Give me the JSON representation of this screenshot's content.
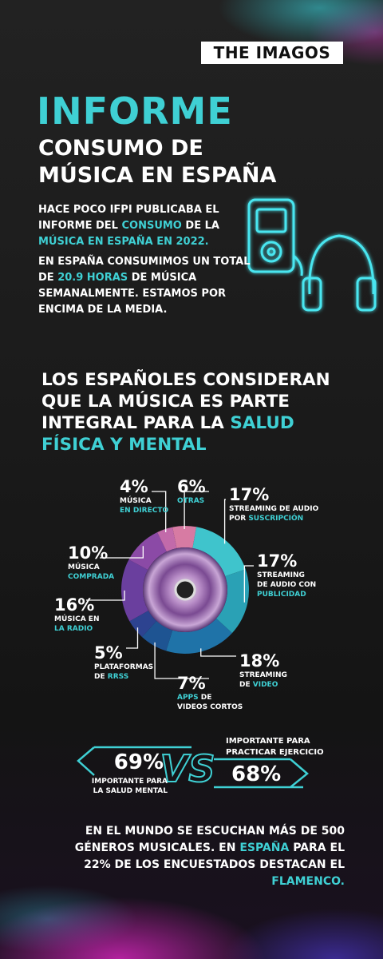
{
  "logo": "THE IMAGOS",
  "header": {
    "title": "INFORME",
    "subtitle_lines": [
      "CONSUMO DE",
      "MÚSICA EN ESPAÑA"
    ]
  },
  "intro": [
    [
      {
        "text": "HACE POCO IFPI PUBLICABA EL INFORME DEL "
      },
      {
        "text": "CONSUMO",
        "accent": true
      },
      {
        "text": " DE LA "
      },
      {
        "text": "MÚSICA EN ESPAÑA EN 2022.",
        "accent": true
      }
    ],
    [
      {
        "text": "EN ESPAÑA CONSUMIMOS UN TOTAL DE "
      },
      {
        "text": "20.9 HORAS",
        "accent": true
      },
      {
        "text": " DE MÚSICA SEMANALMENTE. ESTAMOS POR ENCIMA DE LA MEDIA."
      }
    ]
  ],
  "heading": [
    {
      "text": "LOS ESPAÑOLES CONSIDERAN QUE LA MÚSICA ES PARTE INTEGRAL PARA LA "
    },
    {
      "text": "SALUD FÍSICA Y MENTAL",
      "accent": true
    }
  ],
  "chart_data": {
    "type": "pie",
    "values": [
      6,
      17,
      17,
      18,
      7,
      5,
      16,
      10,
      4
    ],
    "value_labels": [
      "6%",
      "17%",
      "17%",
      "18%",
      "7%",
      "5%",
      "16%",
      "10%",
      "4%"
    ],
    "categories": [
      [
        [
          {
            "text": "OTRAS",
            "accent": true
          }
        ]
      ],
      [
        [
          {
            "text": "STREAMING DE AUDIO"
          }
        ],
        [
          {
            "text": "POR "
          },
          {
            "text": "SUSCRIPCIÓN",
            "accent": true
          }
        ]
      ],
      [
        [
          {
            "text": "STREAMING"
          }
        ],
        [
          {
            "text": "DE AUDIO CON"
          }
        ],
        [
          {
            "text": "PUBLICIDAD",
            "accent": true
          }
        ]
      ],
      [
        [
          {
            "text": "STREAMING"
          }
        ],
        [
          {
            "text": "DE "
          },
          {
            "text": "VIDEO",
            "accent": true
          }
        ]
      ],
      [
        [
          {
            "text": "APPS",
            "accent": true
          },
          {
            "text": " DE"
          }
        ],
        [
          {
            "text": "VIDEOS CORTOS"
          }
        ]
      ],
      [
        [
          {
            "text": "PLATAFORMAS"
          }
        ],
        [
          {
            "text": "DE "
          },
          {
            "text": "RRSS",
            "accent": true
          }
        ]
      ],
      [
        [
          {
            "text": "MÚSICA EN"
          }
        ],
        [
          {
            "text": "LA RADIO",
            "accent": true
          }
        ]
      ],
      [
        [
          {
            "text": "MÚSICA"
          }
        ],
        [
          {
            "text": "COMPRADA",
            "accent": true
          }
        ]
      ],
      [
        [
          {
            "text": "MÚSICA"
          }
        ],
        [
          {
            "text": "EN DIRECTO",
            "accent": true
          }
        ]
      ]
    ],
    "colors": [
      "#d77ba3",
      "#3fc4cc",
      "#2aa1b5",
      "#1f73a8",
      "#1e5492",
      "#2d4390",
      "#6a3f9e",
      "#8b4aa6",
      "#c26aaa"
    ]
  },
  "comparison": {
    "left": {
      "value": "69%",
      "label_lines": [
        "IMPORTANTE PARA",
        "LA SALUD MENTAL"
      ]
    },
    "vs": "VS",
    "right": {
      "value": "68%",
      "label_lines": [
        "IMPORTANTE PARA",
        "PRACTICAR EJERCICIO"
      ]
    }
  },
  "footer": [
    {
      "text": "EN EL MUNDO SE ESCUCHAN MÁS DE 500 GÉNEROS MUSICALES. EN "
    },
    {
      "text": "ESPAÑA",
      "accent": true
    },
    {
      "text": " PARA EL 22% DE LOS ENCUESTADOS DESTACAN EL "
    },
    {
      "text": "FLAMENCO.",
      "accent": true
    }
  ]
}
